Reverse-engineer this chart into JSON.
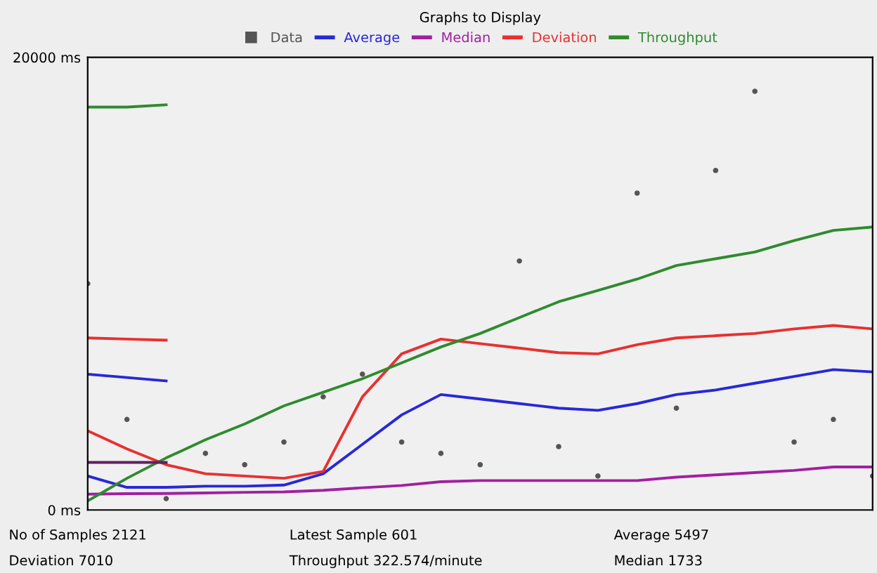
{
  "chart_data": {
    "type": "line",
    "legend_title": "Graphs to Display",
    "legend": "top",
    "categories": [
      null,
      null,
      null,
      null,
      null,
      null,
      null,
      null,
      null,
      null,
      null,
      null,
      null,
      null,
      null,
      null,
      null,
      null,
      null,
      null,
      null
    ],
    "ylim": [
      0,
      20000
    ],
    "yticks": [
      {
        "value": 0,
        "label": "0 ms"
      },
      {
        "value": 20000,
        "label": "20000 ms"
      }
    ],
    "tick_labels": "y",
    "grid": false,
    "marker": "none",
    "line_style": "solid",
    "series": [
      {
        "name": "Data",
        "type": "scatter",
        "color": "#555555",
        "values": [
          10000,
          4000,
          500,
          2500,
          2000,
          3000,
          5000,
          6000,
          3000,
          2500,
          2000,
          11000,
          2800,
          1500,
          14000,
          4500,
          15000,
          18500,
          3000,
          4000,
          1500
        ]
      },
      {
        "name": "Average",
        "color": "#2828d8",
        "values": [
          1500,
          1000,
          1000,
          1050,
          1050,
          1100,
          1600,
          2900,
          4200,
          5100,
          4900,
          4700,
          4500,
          4400,
          4700,
          5100,
          5300,
          5600,
          5900,
          6200,
          6100
        ]
      },
      {
        "name": "Median",
        "color": "#a020a0",
        "values": [
          700,
          720,
          730,
          750,
          780,
          800,
          870,
          980,
          1080,
          1250,
          1300,
          1300,
          1300,
          1300,
          1300,
          1450,
          1550,
          1650,
          1750,
          1900,
          1900
        ]
      },
      {
        "name": "Deviation",
        "color": "#e83030",
        "values": [
          3500,
          2700,
          2000,
          1600,
          1500,
          1400,
          1700,
          5000,
          6900,
          7550,
          7350,
          7150,
          6950,
          6900,
          7300,
          7600,
          7700,
          7800,
          8000,
          8150,
          8000
        ]
      },
      {
        "name": "Throughput",
        "color": "#2e8b2e",
        "values": [
          400,
          1400,
          2300,
          3100,
          3800,
          4600,
          5200,
          5800,
          6500,
          7200,
          7800,
          8500,
          9200,
          9700,
          10200,
          10800,
          11100,
          11400,
          11900,
          12350,
          12500
        ]
      },
      {
        "color": "#2e8b2e",
        "values": [
          17800,
          17800,
          17900,
          null,
          null,
          null,
          null,
          null,
          null,
          null,
          null,
          null,
          null,
          null,
          null,
          null,
          null,
          null,
          null,
          null,
          null
        ]
      },
      {
        "color": "#e83030",
        "values": [
          7600,
          7550,
          7500,
          null,
          null,
          null,
          null,
          null,
          null,
          null,
          null,
          null,
          null,
          null,
          null,
          null,
          null,
          null,
          null,
          null,
          null
        ]
      },
      {
        "color": "#2828d8",
        "values": [
          6000,
          5850,
          5700,
          null,
          null,
          null,
          null,
          null,
          null,
          null,
          null,
          null,
          null,
          null,
          null,
          null,
          null,
          null,
          null,
          null,
          null
        ]
      },
      {
        "color": "#602060",
        "values": [
          2100,
          2100,
          2100,
          null,
          null,
          null,
          null,
          null,
          null,
          null,
          null,
          null,
          null,
          null,
          null,
          null,
          null,
          null,
          null,
          null,
          null
        ]
      }
    ],
    "annotations": [
      "No of Samples 2121",
      "Latest Sample 601",
      "Average 5497",
      "Deviation 7010",
      "Throughput 322.574/minute",
      "Median 1733"
    ]
  }
}
